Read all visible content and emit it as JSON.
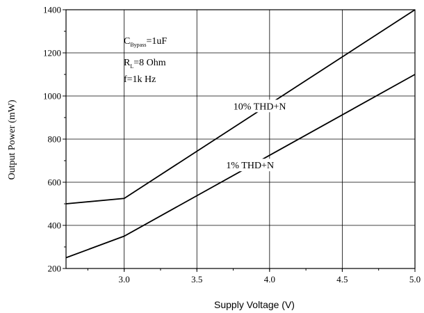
{
  "chart_data": {
    "type": "line",
    "xlabel": "Supply Voltage (V)",
    "ylabel": "Output Power (mW)",
    "xlim": [
      2.6,
      5.0
    ],
    "ylim": [
      200,
      1400
    ],
    "x_ticks": [
      3.0,
      3.5,
      4.0,
      4.5,
      5.0
    ],
    "x_tick_labels": [
      "3.0",
      "3.5",
      "4.0",
      "4.5",
      "5.0"
    ],
    "y_ticks": [
      200,
      400,
      600,
      800,
      1000,
      1200,
      1400
    ],
    "y_tick_labels": [
      "200",
      "400",
      "600",
      "800",
      "1000",
      "1200",
      "1400"
    ],
    "grid": true,
    "series": [
      {
        "name": "10% THD+N",
        "x": [
          2.6,
          3.0,
          5.0
        ],
        "y": [
          500,
          525,
          1400
        ]
      },
      {
        "name": "1% THD+N",
        "x": [
          2.6,
          3.0,
          5.0
        ],
        "y": [
          250,
          350,
          1100
        ]
      }
    ],
    "annotations": {
      "bypass": {
        "main": "C",
        "sub": "Bypass",
        "value": "=1uF"
      },
      "load": {
        "main": "R",
        "sub": "L",
        "value": "=8 Ohm"
      },
      "freq": "f=1k Hz"
    }
  }
}
